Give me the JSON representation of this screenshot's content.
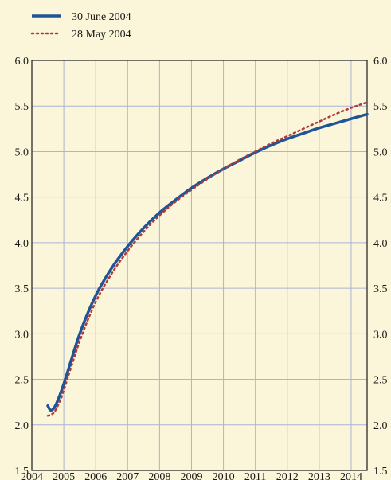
{
  "chart_data": {
    "type": "line",
    "grid": true,
    "legend_position": "top-left",
    "xlim": [
      2004.0,
      2014.5
    ],
    "ylim": [
      1.5,
      6.0
    ],
    "x_ticks": [
      "2004",
      "2005",
      "2006",
      "2007",
      "2008",
      "2009",
      "2010",
      "2011",
      "2012",
      "2013",
      "2014"
    ],
    "y_ticks": [
      "1.5",
      "2.0",
      "2.5",
      "3.0",
      "3.5",
      "4.0",
      "4.5",
      "5.0",
      "5.5",
      "6.0"
    ],
    "series": [
      {
        "name": "30 June 2004",
        "style": "solid",
        "color": "#1f5597",
        "x": [
          2004.5,
          2004.6,
          2004.75,
          2005.0,
          2005.5,
          2006.0,
          2006.5,
          2007.0,
          2007.5,
          2008.0,
          2008.5,
          2009.0,
          2009.5,
          2010.0,
          2010.5,
          2011.0,
          2011.5,
          2012.0,
          2012.5,
          2013.0,
          2013.5,
          2014.0,
          2014.5
        ],
        "y": [
          2.21,
          2.16,
          2.22,
          2.45,
          3.0,
          3.42,
          3.72,
          3.96,
          4.16,
          4.33,
          4.47,
          4.6,
          4.71,
          4.81,
          4.9,
          4.99,
          5.07,
          5.14,
          5.2,
          5.26,
          5.31,
          5.36,
          5.41
        ]
      },
      {
        "name": "28 May 2004",
        "style": "dotted",
        "color": "#b03a3a",
        "x": [
          2004.5,
          2004.7,
          2004.9,
          2005.0,
          2005.5,
          2006.0,
          2006.5,
          2007.0,
          2007.5,
          2008.0,
          2008.5,
          2009.0,
          2009.5,
          2010.0,
          2010.5,
          2011.0,
          2011.5,
          2012.0,
          2012.5,
          2013.0,
          2013.5,
          2014.0,
          2014.5
        ],
        "y": [
          2.1,
          2.14,
          2.28,
          2.38,
          2.92,
          3.35,
          3.66,
          3.91,
          4.12,
          4.3,
          4.45,
          4.58,
          4.7,
          4.81,
          4.91,
          5.0,
          5.09,
          5.17,
          5.25,
          5.33,
          5.41,
          5.48,
          5.54
        ]
      }
    ]
  }
}
